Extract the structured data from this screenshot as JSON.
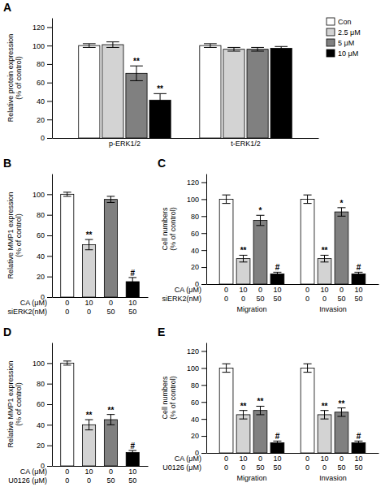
{
  "chart_data": [
    {
      "type": "bar",
      "title": "A",
      "categories": [
        "p-ERK1/2",
        "t-ERK1/2"
      ],
      "series": [
        {
          "name": "Con",
          "color": "#ffffff",
          "values": [
            100,
            100
          ],
          "errors": [
            2,
            2
          ]
        },
        {
          "name": "2.5 μM",
          "color": "#d3d3d3",
          "values": [
            101,
            96
          ],
          "errors": [
            3,
            2
          ]
        },
        {
          "name": "5 μM",
          "color": "#808080",
          "values": [
            70,
            96
          ],
          "errors": [
            8,
            2
          ],
          "annotations": [
            "**",
            null
          ]
        },
        {
          "name": "10 μM",
          "color": "#000000",
          "values": [
            41,
            97
          ],
          "errors": [
            7,
            2
          ],
          "annotations": [
            "**",
            null
          ]
        }
      ],
      "ylabel": "Relative protein expression\n(% of control)",
      "ylim": [
        0,
        130
      ],
      "yticks": [
        0,
        20,
        40,
        60,
        80,
        100,
        120
      ],
      "legend": "upper right"
    },
    {
      "type": "bar",
      "title": "B",
      "categories": [
        "0\n0",
        "10\n0",
        "0\n50",
        "10\n50"
      ],
      "xlabel": "CA (μM)\nsiERK2(nM)",
      "values": [
        100,
        51,
        95,
        15
      ],
      "errors": [
        2,
        5,
        3,
        4
      ],
      "annotations": [
        null,
        "**",
        null,
        "#"
      ],
      "colors": [
        "#ffffff",
        "#d3d3d3",
        "#808080",
        "#000000"
      ],
      "ylabel": "Relative MMP1 expression\n(% of control)",
      "ylim": [
        0,
        120
      ],
      "yticks": [
        0,
        20,
        40,
        60,
        80,
        100
      ]
    },
    {
      "type": "bar",
      "title": "C",
      "categories": [
        "0\n0",
        "10\n0",
        "0\n50",
        "10\n50"
      ],
      "xlabel": "CA (μM)\nsiERK2(nM)",
      "colors": [
        "#ffffff",
        "#d3d3d3",
        "#808080",
        "#000000"
      ],
      "series": [
        {
          "name": "Migration",
          "values": [
            100,
            30,
            75,
            12
          ],
          "errors": [
            5,
            4,
            6,
            2
          ],
          "annotations": [
            null,
            "**",
            "*",
            "#"
          ]
        },
        {
          "name": "Invasion",
          "values": [
            100,
            30,
            85,
            12
          ],
          "errors": [
            5,
            4,
            5,
            2
          ],
          "annotations": [
            null,
            "**",
            "*",
            "#"
          ]
        }
      ],
      "ylabel": "Cell numbers\n(% of control)",
      "ylim": [
        0,
        130
      ],
      "yticks": [
        0,
        20,
        40,
        60,
        80,
        100,
        120
      ]
    },
    {
      "type": "bar",
      "title": "D",
      "categories": [
        "0\n0",
        "10\n0",
        "0\n50",
        "10\n50"
      ],
      "xlabel": "CA (μM)\nU0126 (μM)",
      "values": [
        100,
        40,
        45,
        13
      ],
      "errors": [
        2,
        5,
        5,
        2
      ],
      "annotations": [
        null,
        "**",
        "**",
        "#"
      ],
      "colors": [
        "#ffffff",
        "#d3d3d3",
        "#808080",
        "#000000"
      ],
      "ylabel": "Relative MMP1 expression\n(% of control)",
      "ylim": [
        0,
        120
      ],
      "yticks": [
        0,
        20,
        40,
        60,
        80,
        100
      ]
    },
    {
      "type": "bar",
      "title": "E",
      "categories": [
        "0\n0",
        "10\n0",
        "0\n50",
        "10\n50"
      ],
      "xlabel": "CA (μM)\nU0126 (μM)",
      "colors": [
        "#ffffff",
        "#d3d3d3",
        "#808080",
        "#000000"
      ],
      "series": [
        {
          "name": "Migration",
          "values": [
            100,
            45,
            50,
            12
          ],
          "errors": [
            5,
            5,
            5,
            2
          ],
          "annotations": [
            null,
            "**",
            "**",
            "#"
          ]
        },
        {
          "name": "Invasion",
          "values": [
            100,
            45,
            48,
            12
          ],
          "errors": [
            5,
            5,
            5,
            2
          ],
          "annotations": [
            null,
            "**",
            "**",
            "#"
          ]
        }
      ],
      "ylabel": "Cell numbers\n(% of control)",
      "ylim": [
        0,
        130
      ],
      "yticks": [
        0,
        20,
        40,
        60,
        80,
        100,
        120
      ]
    }
  ]
}
